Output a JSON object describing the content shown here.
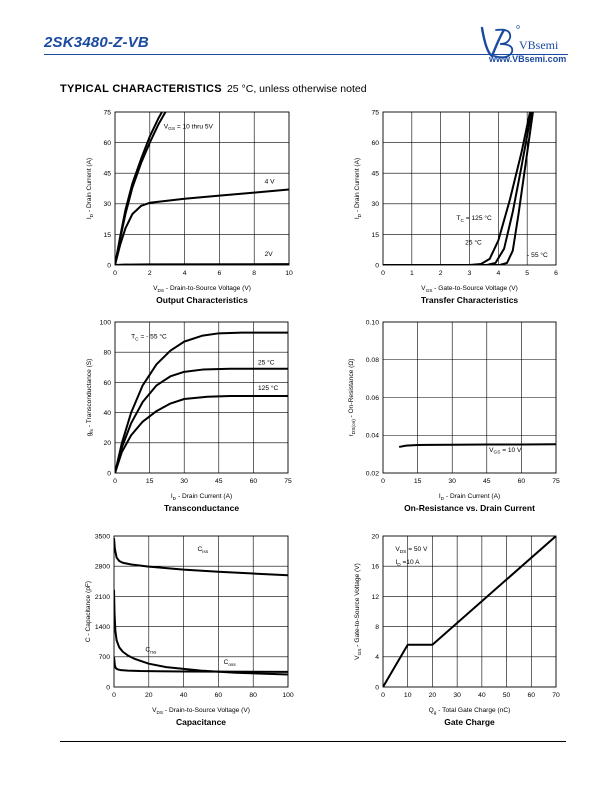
{
  "header": {
    "part_number": "2SK3480-Z-VB",
    "brand": "VBsemi",
    "url": "www.VBsemi.com"
  },
  "section": {
    "title": "TYPICAL CHARACTERISTICS",
    "condition": "25 °C, unless otherwise noted"
  },
  "chart_data": [
    {
      "id": "output",
      "type": "line",
      "title": "Output Characteristics",
      "xlabel_pre": "V",
      "xlabel_sub": "DS",
      "xlabel_post": " - Drain-to-Source Voltage (V)",
      "ylabel_pre": "I",
      "ylabel_sub": "D",
      "ylabel_post": " - Drain Current (A)",
      "xlim": [
        0,
        10
      ],
      "ylim": [
        0,
        75
      ],
      "xticks": [
        0,
        2,
        4,
        6,
        8,
        10
      ],
      "yticks": [
        0,
        15,
        30,
        45,
        60,
        75
      ],
      "xtick_labels": [
        "0",
        "2",
        "4",
        "6",
        "8",
        "10"
      ],
      "ytick_labels": [
        "0",
        "15",
        "30",
        "45",
        "60",
        "75"
      ],
      "series": [
        {
          "x": [
            0,
            0.3,
            0.6,
            1.0,
            1.5,
            2.0,
            2.5,
            2.7
          ],
          "y": [
            0,
            14,
            27,
            40,
            52,
            63,
            72,
            75
          ]
        },
        {
          "x": [
            0,
            0.3,
            0.6,
            1.0,
            1.5,
            2.0,
            2.5,
            2.9
          ],
          "y": [
            0,
            13,
            25,
            38,
            50,
            60,
            69,
            75
          ]
        },
        {
          "x": [
            0,
            0.3,
            0.6,
            1.0,
            1.5,
            2.0,
            4,
            6,
            8,
            10
          ],
          "y": [
            0,
            10,
            18,
            25,
            29,
            30.5,
            32.5,
            34,
            35.5,
            37
          ]
        },
        {
          "x": [
            0,
            0.5,
            2,
            10
          ],
          "y": [
            0,
            0.2,
            0.3,
            0.4
          ]
        }
      ],
      "annotations": [
        {
          "x": 2.8,
          "y": 67,
          "pre": "V",
          "sub": "GS",
          "post": " = 10 thru 5V"
        },
        {
          "x": 8.6,
          "y": 40,
          "pre": "4 V",
          "sub": "",
          "post": ""
        },
        {
          "x": 8.6,
          "y": 4.5,
          "pre": "2V",
          "sub": "",
          "post": ""
        }
      ]
    },
    {
      "id": "transfer",
      "type": "line",
      "title": "Transfer Characteristics",
      "xlabel_pre": "V",
      "xlabel_sub": "GS",
      "xlabel_post": " - Gate-to-Source Voltage (V)",
      "ylabel_pre": "I",
      "ylabel_sub": "D",
      "ylabel_post": " - Drain Current (A)",
      "xlim": [
        0,
        6
      ],
      "ylim": [
        0,
        75
      ],
      "xticks": [
        0,
        1,
        2,
        3,
        4,
        5,
        6
      ],
      "yticks": [
        0,
        15,
        30,
        45,
        60,
        75
      ],
      "xtick_labels": [
        "0",
        "1",
        "2",
        "3",
        "4",
        "5",
        "6"
      ],
      "ytick_labels": [
        "0",
        "15",
        "30",
        "45",
        "60",
        "75"
      ],
      "series": [
        {
          "x": [
            0,
            3.0,
            3.4,
            3.7,
            4.0,
            4.4,
            4.8,
            5.1
          ],
          "y": [
            0,
            0,
            0.5,
            3,
            12,
            32,
            55,
            75
          ]
        },
        {
          "x": [
            0,
            3.6,
            3.9,
            4.2,
            4.5,
            4.8,
            5.15
          ],
          "y": [
            0,
            0,
            1,
            8,
            26,
            48,
            75
          ]
        },
        {
          "x": [
            0,
            4.05,
            4.3,
            4.5,
            4.7,
            4.95,
            5.2
          ],
          "y": [
            0,
            0,
            1,
            7,
            25,
            50,
            75
          ]
        }
      ],
      "annotations": [
        {
          "x": 2.55,
          "y": 22,
          "pre": "T",
          "sub": "C",
          "post": " = 125 °C"
        },
        {
          "x": 2.85,
          "y": 10,
          "pre": "25 °C",
          "sub": "",
          "post": ""
        },
        {
          "x": 5.0,
          "y": 4,
          "pre": "- 55 °C",
          "sub": "",
          "post": ""
        }
      ]
    },
    {
      "id": "transconductance",
      "type": "line",
      "title": "Transconductance",
      "xlabel_pre": "I",
      "xlabel_sub": "D",
      "xlabel_post": " - Drain Current (A)",
      "ylabel_pre": "g",
      "ylabel_sub": "fs",
      "ylabel_post": " - Transconductance (S)",
      "xlim": [
        0,
        75
      ],
      "ylim": [
        0,
        100
      ],
      "xticks": [
        0,
        15,
        30,
        45,
        60,
        75
      ],
      "yticks": [
        0,
        20,
        40,
        60,
        80,
        100
      ],
      "xtick_labels": [
        "0",
        "15",
        "30",
        "45",
        "60",
        "75"
      ],
      "ytick_labels": [
        "0",
        "20",
        "40",
        "60",
        "80",
        "100"
      ],
      "series": [
        {
          "x": [
            0,
            3,
            7,
            12,
            18,
            24,
            30,
            38,
            45,
            55,
            65,
            75
          ],
          "y": [
            0,
            20,
            40,
            58,
            72,
            81,
            87,
            91,
            92.5,
            93,
            93,
            93
          ]
        },
        {
          "x": [
            0,
            3,
            7,
            12,
            18,
            24,
            30,
            38,
            50,
            60,
            75
          ],
          "y": [
            0,
            17,
            33,
            47,
            58,
            64,
            67,
            68.5,
            69,
            69,
            69
          ]
        },
        {
          "x": [
            0,
            3,
            7,
            12,
            18,
            24,
            30,
            40,
            50,
            60,
            75
          ],
          "y": [
            0,
            14,
            25,
            34,
            41,
            46,
            49,
            50.5,
            51,
            51,
            51
          ]
        }
      ],
      "annotations": [
        {
          "x": 7,
          "y": 89,
          "pre": "T",
          "sub": "C",
          "post": " = - 55 °C"
        },
        {
          "x": 62,
          "y": 72,
          "pre": "25 °C",
          "sub": "",
          "post": ""
        },
        {
          "x": 62,
          "y": 55,
          "pre": "125 °C",
          "sub": "",
          "post": ""
        }
      ]
    },
    {
      "id": "onresistance",
      "type": "line",
      "title": "On-Resistance vs. Drain Current",
      "xlabel_pre": "I",
      "xlabel_sub": "D",
      "xlabel_post": " - Drain Current (A)",
      "ylabel_pre": "r",
      "ylabel_sub": "DS(on)",
      "ylabel_post": " - On-Resistance (Ω)",
      "xlim": [
        0,
        75
      ],
      "ylim": [
        0.02,
        0.1
      ],
      "xticks": [
        0,
        15,
        30,
        45,
        60,
        75
      ],
      "yticks": [
        0.02,
        0.04,
        0.06,
        0.08,
        0.1
      ],
      "xtick_labels": [
        "0",
        "15",
        "30",
        "45",
        "60",
        "75"
      ],
      "ytick_labels": [
        "0.02",
        "0.04",
        "0.06",
        "0.08",
        "0.10"
      ],
      "series": [
        {
          "x": [
            7,
            10,
            15,
            20,
            30,
            45,
            60,
            75
          ],
          "y": [
            0.0338,
            0.0345,
            0.0348,
            0.0349,
            0.035,
            0.0351,
            0.0351,
            0.0352
          ]
        }
      ],
      "annotations": [
        {
          "x": 46,
          "y": 0.0312,
          "pre": "V",
          "sub": "GS",
          "post": " = 10 V"
        }
      ]
    },
    {
      "id": "capacitance",
      "type": "line",
      "title": "Capacitance",
      "xlabel_pre": "V",
      "xlabel_sub": "DS",
      "xlabel_post": " - Drain-to-Source Voltage (V)",
      "ylabel_pre": "C",
      "ylabel_sub": "",
      "ylabel_post": " - Capacitance (pF)",
      "xlim": [
        0,
        100
      ],
      "ylim": [
        0,
        3500
      ],
      "xticks": [
        0,
        20,
        40,
        60,
        80,
        100
      ],
      "yticks": [
        0,
        700,
        1400,
        2100,
        2800,
        3500
      ],
      "xtick_labels": [
        "0",
        "20",
        "40",
        "60",
        "80",
        "100"
      ],
      "ytick_labels": [
        "0",
        "700",
        "1400",
        "2100",
        "2800",
        "3500"
      ],
      "series": [
        {
          "x": [
            0,
            0.5,
            1.5,
            3,
            5,
            10,
            20,
            40,
            60,
            80,
            100
          ],
          "y": [
            3450,
            3200,
            3000,
            2920,
            2880,
            2840,
            2790,
            2720,
            2670,
            2630,
            2590
          ]
        },
        {
          "x": [
            0,
            0.3,
            0.8,
            1.5,
            3,
            5,
            8,
            12,
            20,
            30,
            50,
            70,
            100
          ],
          "y": [
            2250,
            1700,
            1300,
            1080,
            920,
            820,
            730,
            650,
            540,
            460,
            380,
            330,
            290
          ]
        },
        {
          "x": [
            0,
            0.5,
            1,
            2,
            4,
            8,
            15,
            25,
            40,
            60,
            80,
            100
          ],
          "y": [
            700,
            500,
            440,
            410,
            390,
            380,
            370,
            365,
            360,
            355,
            352,
            350
          ]
        }
      ],
      "annotations": [
        {
          "x": 48,
          "y": 3150,
          "pre": "C",
          "sub": "iss",
          "post": ""
        },
        {
          "x": 18,
          "y": 820,
          "pre": "C",
          "sub": "rss",
          "post": ""
        },
        {
          "x": 63,
          "y": 530,
          "pre": "C",
          "sub": "oss",
          "post": ""
        }
      ]
    },
    {
      "id": "gatecharge",
      "type": "line",
      "title": "Gate Charge",
      "xlabel_pre": "Q",
      "xlabel_sub": "g",
      "xlabel_post": " - Total Gate Charge (nC)",
      "ylabel_pre": "V",
      "ylabel_sub": "GS",
      "ylabel_post": " - Gate-to-Source Voltage (V)",
      "xlim": [
        0,
        70
      ],
      "ylim": [
        0,
        20
      ],
      "xticks": [
        0,
        10,
        20,
        30,
        40,
        50,
        60,
        70
      ],
      "yticks": [
        0,
        4,
        8,
        12,
        16,
        20
      ],
      "xtick_labels": [
        "0",
        "10",
        "20",
        "30",
        "40",
        "50",
        "60",
        "70"
      ],
      "ytick_labels": [
        "0",
        "4",
        "8",
        "12",
        "16",
        "20"
      ],
      "series": [
        {
          "x": [
            0,
            10,
            20,
            70
          ],
          "y": [
            0,
            5.6,
            5.6,
            20
          ]
        }
      ],
      "annotations": [
        {
          "x": 5,
          "y": 18,
          "pre": "V",
          "sub": "DS",
          "post": " = 50 V"
        },
        {
          "x": 5,
          "y": 16.3,
          "pre": "I",
          "sub": "D",
          "post": " =10 A"
        }
      ]
    }
  ]
}
